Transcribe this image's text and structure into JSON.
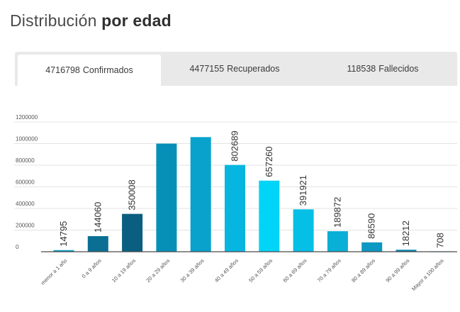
{
  "title": {
    "regular": "Distribución",
    "bold": "por edad"
  },
  "tabs": [
    {
      "value": "4716798",
      "label": "Confirmados",
      "active": true
    },
    {
      "value": "4477155",
      "label": "Recuperados",
      "active": false
    },
    {
      "value": "118538",
      "label": "Fallecidos",
      "active": false
    }
  ],
  "chart_data": {
    "type": "bar",
    "categories": [
      "menor a 1 año",
      "0 a 9 años",
      "10 a 19 años",
      "20 a 29 años",
      "30 a 39 años",
      "40 a 49 años",
      "50 a 59 años",
      "60 a 69 años",
      "70 a 79 años",
      "80 a 89 años",
      "90 a 99 años",
      "Mayor a 100 años"
    ],
    "values": [
      14795,
      144060,
      350008,
      1000000,
      1060000,
      802689,
      657260,
      391921,
      189872,
      86590,
      18212,
      708
    ],
    "data_labels": [
      "14795",
      "144060",
      "350008",
      "",
      "",
      "802689",
      "657260",
      "391921",
      "189872",
      "86590",
      "18212",
      "708"
    ],
    "bar_colors": [
      "#0a9cc4",
      "#0b6f94",
      "#0a5e80",
      "#0690b8",
      "#08a2cc",
      "#06b6e0",
      "#00d4f7",
      "#06bfe6",
      "#0aafd6",
      "#0b98c2",
      "#0b84ad",
      "#0b84ad"
    ],
    "yticks": [
      0,
      200000,
      400000,
      600000,
      800000,
      1000000,
      1200000
    ],
    "ytick_labels": [
      "0",
      "200000",
      "400000",
      "600000",
      "800000",
      "1000000",
      "1200000"
    ],
    "ylim": [
      0,
      1200000
    ],
    "grid": true,
    "title": "",
    "xlabel": "",
    "ylabel": ""
  }
}
